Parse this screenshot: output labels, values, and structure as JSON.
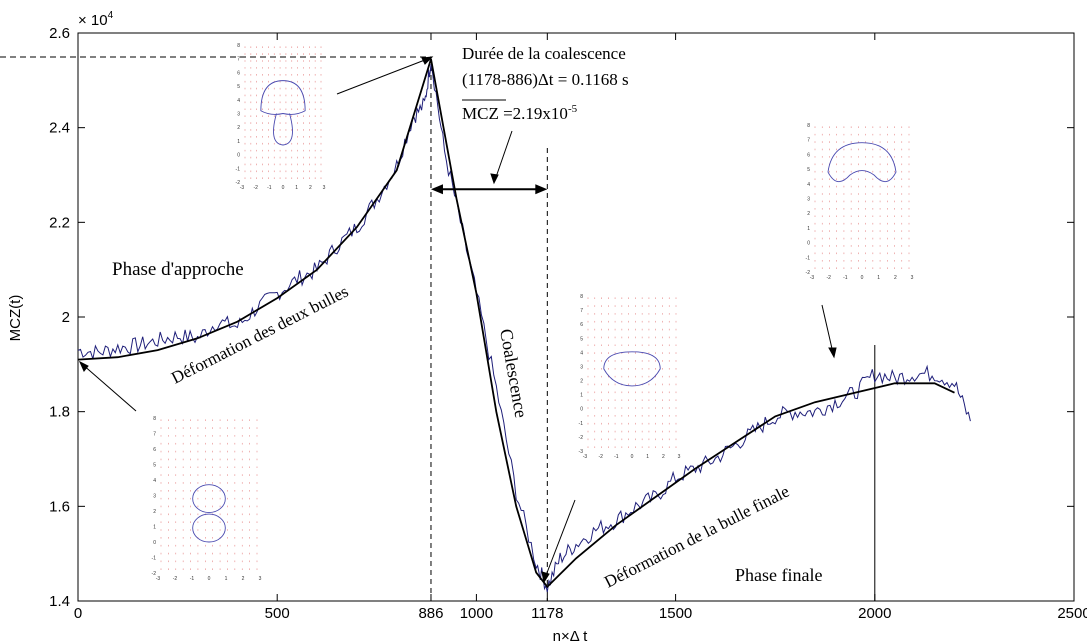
{
  "chart_data": {
    "type": "line",
    "title": "",
    "xlabel": "n×Δ t",
    "ylabel": "MCZ(t)",
    "xlim": [
      0,
      2500
    ],
    "ylim": [
      1.4,
      2.6
    ],
    "y_multiplier_label": "× 10",
    "y_multiplier_exp": "4",
    "xticks": [
      "0",
      "500",
      "886",
      "1000",
      "1178",
      "1500",
      "2000",
      "2500"
    ],
    "yticks": [
      "1.4",
      "1.6",
      "1.8",
      "2",
      "2.2",
      "2.4",
      "2.6"
    ],
    "grid": false,
    "series": [
      {
        "kind": "raw",
        "color": "#1f1f7a",
        "points": [
          [
            0,
            1.93
          ],
          [
            50,
            1.925
          ],
          [
            100,
            1.935
          ],
          [
            150,
            1.94
          ],
          [
            200,
            1.95
          ],
          [
            250,
            1.96
          ],
          [
            300,
            1.955
          ],
          [
            350,
            1.99
          ],
          [
            400,
            1.98
          ],
          [
            450,
            2.02
          ],
          [
            500,
            2.05
          ],
          [
            550,
            2.08
          ],
          [
            600,
            2.1
          ],
          [
            650,
            2.15
          ],
          [
            700,
            2.19
          ],
          [
            750,
            2.25
          ],
          [
            800,
            2.32
          ],
          [
            840,
            2.42
          ],
          [
            870,
            2.45
          ],
          [
            886,
            2.545
          ],
          [
            920,
            2.35
          ],
          [
            960,
            2.2
          ],
          [
            1000,
            2.05
          ],
          [
            1050,
            1.85
          ],
          [
            1100,
            1.63
          ],
          [
            1150,
            1.48
          ],
          [
            1178,
            1.43
          ],
          [
            1210,
            1.49
          ],
          [
            1250,
            1.52
          ],
          [
            1300,
            1.55
          ],
          [
            1350,
            1.57
          ],
          [
            1400,
            1.6
          ],
          [
            1450,
            1.62
          ],
          [
            1500,
            1.66
          ],
          [
            1550,
            1.68
          ],
          [
            1600,
            1.7
          ],
          [
            1650,
            1.73
          ],
          [
            1700,
            1.76
          ],
          [
            1750,
            1.79
          ],
          [
            1800,
            1.8
          ],
          [
            1850,
            1.8
          ],
          [
            1900,
            1.82
          ],
          [
            1950,
            1.84
          ],
          [
            2000,
            1.88
          ],
          [
            2050,
            1.87
          ],
          [
            2100,
            1.88
          ],
          [
            2150,
            1.88
          ],
          [
            2200,
            1.86
          ],
          [
            2240,
            1.78
          ]
        ]
      },
      {
        "kind": "fit",
        "color": "#000000",
        "points": [
          [
            0,
            1.91
          ],
          [
            100,
            1.915
          ],
          [
            200,
            1.93
          ],
          [
            300,
            1.955
          ],
          [
            400,
            1.99
          ],
          [
            500,
            2.04
          ],
          [
            600,
            2.1
          ],
          [
            700,
            2.19
          ],
          [
            800,
            2.31
          ],
          [
            886,
            2.545
          ],
          [
            950,
            2.25
          ],
          [
            1000,
            2.05
          ],
          [
            1050,
            1.8
          ],
          [
            1100,
            1.6
          ],
          [
            1150,
            1.46
          ],
          [
            1178,
            1.43
          ],
          [
            1250,
            1.49
          ],
          [
            1350,
            1.56
          ],
          [
            1450,
            1.62
          ],
          [
            1550,
            1.68
          ],
          [
            1650,
            1.735
          ],
          [
            1750,
            1.79
          ],
          [
            1850,
            1.82
          ],
          [
            1950,
            1.84
          ],
          [
            2050,
            1.86
          ],
          [
            2150,
            1.86
          ],
          [
            2200,
            1.84
          ]
        ]
      }
    ],
    "vlines": [
      {
        "x": 886,
        "style": "dashed"
      },
      {
        "x": 1178,
        "style": "dashed"
      },
      {
        "x": 2000,
        "style": "solid"
      }
    ],
    "interval": {
      "x_start": 886,
      "x_end": 1178,
      "y": 2.27
    },
    "annotations": {
      "duration_title": "Durée de la coalescence",
      "duration_formula": "(1178-886)Δt = 0.1168 s",
      "mean_label": "MCZ",
      "mean_value": " =2.19x10",
      "mean_exp": "-5",
      "phase_approach": "Phase d'approche",
      "deformation_two": "Déformation des deux bulles",
      "coalescence": "Coalescence",
      "deformation_final": "Déformation de la bulle finale",
      "phase_final": "Phase finale"
    },
    "insets": [
      {
        "name": "inset-two-bubbles",
        "xticks": [
          "-3",
          "-2",
          "-1",
          "0",
          "1",
          "2",
          "3"
        ],
        "yticks": [
          "-2",
          "-1",
          "0",
          "1",
          "2",
          "3",
          "4",
          "5",
          "6",
          "7",
          "8"
        ]
      },
      {
        "name": "inset-mushroom",
        "xticks": [
          "-3",
          "-2",
          "-1",
          "0",
          "1",
          "2",
          "3"
        ],
        "yticks": [
          "-2",
          "-1",
          "0",
          "1",
          "2",
          "3",
          "4",
          "5",
          "6",
          "7",
          "8"
        ]
      },
      {
        "name": "inset-single-bubble",
        "xticks": [
          "-3",
          "-2",
          "-1",
          "0",
          "1",
          "2",
          "3"
        ],
        "yticks": [
          "-3",
          "-2",
          "-1",
          "0",
          "1",
          "2",
          "3",
          "4",
          "5",
          "6",
          "7",
          "8"
        ]
      },
      {
        "name": "inset-final-bubble",
        "xticks": [
          "-3",
          "-2",
          "-1",
          "0",
          "1",
          "2",
          "3"
        ],
        "yticks": [
          "-2",
          "-1",
          "0",
          "1",
          "2",
          "3",
          "4",
          "5",
          "6",
          "7",
          "8"
        ]
      }
    ]
  }
}
